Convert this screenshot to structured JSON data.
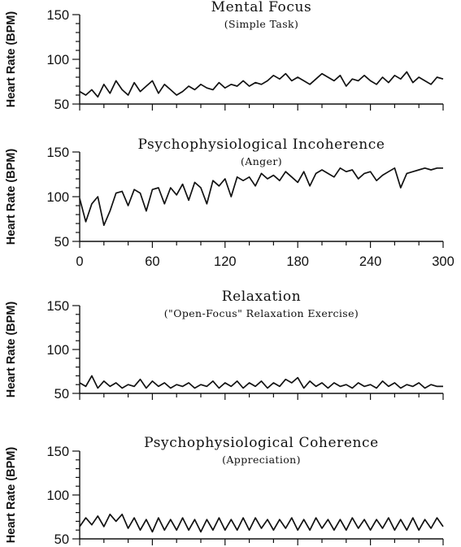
{
  "chart_data": [
    {
      "type": "line",
      "title": "Mental Focus",
      "subtitle": "(Simple Task)",
      "ylabel": "Heart Rate (BPM)",
      "xlabel": "",
      "ylim": [
        50,
        150
      ],
      "yticks": [
        "150",
        "100",
        "50"
      ],
      "xlim": [
        0,
        300
      ],
      "xticks": [],
      "grid": false,
      "series": [
        {
          "x": [
            0,
            5,
            10,
            15,
            20,
            25,
            30,
            35,
            40,
            45,
            50,
            55,
            60,
            65,
            70,
            75,
            80,
            85,
            90,
            95,
            100,
            105,
            110,
            115,
            120,
            125,
            130,
            135,
            140,
            145,
            150,
            155,
            160,
            165,
            170,
            175,
            180,
            185,
            190,
            195,
            200,
            205,
            210,
            215,
            220,
            225,
            230,
            235,
            240,
            245,
            250,
            255,
            260,
            265,
            270,
            275,
            280,
            285,
            290,
            295,
            300
          ],
          "y": [
            64,
            60,
            66,
            58,
            72,
            62,
            76,
            66,
            60,
            74,
            64,
            70,
            76,
            62,
            72,
            66,
            60,
            64,
            70,
            66,
            72,
            68,
            66,
            74,
            68,
            72,
            70,
            76,
            70,
            74,
            72,
            76,
            82,
            78,
            84,
            76,
            80,
            76,
            72,
            78,
            84,
            80,
            76,
            82,
            70,
            78,
            76,
            82,
            76,
            72,
            80,
            74,
            82,
            78,
            86,
            74,
            80,
            76,
            72,
            80,
            78
          ]
        }
      ]
    },
    {
      "type": "line",
      "title": "Psychophysiological Incoherence",
      "subtitle": "(Anger)",
      "ylabel": "Heart Rate (BPM)",
      "xlabel": "",
      "ylim": [
        50,
        150
      ],
      "yticks": [
        "150",
        "100",
        "50"
      ],
      "xlim": [
        0,
        300
      ],
      "xticks": [
        "0",
        "60",
        "120",
        "180",
        "240",
        "300"
      ],
      "grid": false,
      "series": [
        {
          "x": [
            0,
            5,
            10,
            15,
            20,
            25,
            30,
            35,
            40,
            45,
            50,
            55,
            60,
            65,
            70,
            75,
            80,
            85,
            90,
            95,
            100,
            105,
            110,
            115,
            120,
            125,
            130,
            135,
            140,
            145,
            150,
            155,
            160,
            165,
            170,
            175,
            180,
            185,
            190,
            195,
            200,
            205,
            210,
            215,
            220,
            225,
            230,
            235,
            240,
            245,
            250,
            255,
            260,
            265,
            270,
            275,
            280,
            285,
            290,
            295,
            300
          ],
          "y": [
            98,
            72,
            92,
            100,
            68,
            84,
            104,
            106,
            90,
            108,
            104,
            84,
            108,
            110,
            92,
            110,
            102,
            114,
            96,
            116,
            110,
            92,
            118,
            112,
            120,
            100,
            122,
            118,
            122,
            112,
            126,
            120,
            124,
            118,
            128,
            122,
            116,
            128,
            112,
            126,
            130,
            126,
            122,
            132,
            128,
            130,
            120,
            126,
            128,
            118,
            124,
            128,
            132,
            110,
            126,
            128,
            130,
            132,
            130,
            132,
            132
          ]
        }
      ]
    },
    {
      "type": "line",
      "title": "Relaxation",
      "subtitle": "(\"Open-Focus\" Relaxation Exercise)",
      "ylabel": "Heart Rate (BPM)",
      "xlabel": "",
      "ylim": [
        50,
        150
      ],
      "yticks": [
        "150",
        "100",
        "50"
      ],
      "xlim": [
        0,
        300
      ],
      "xticks": [],
      "grid": false,
      "series": [
        {
          "x": [
            0,
            5,
            10,
            15,
            20,
            25,
            30,
            35,
            40,
            45,
            50,
            55,
            60,
            65,
            70,
            75,
            80,
            85,
            90,
            95,
            100,
            105,
            110,
            115,
            120,
            125,
            130,
            135,
            140,
            145,
            150,
            155,
            160,
            165,
            170,
            175,
            180,
            185,
            190,
            195,
            200,
            205,
            210,
            215,
            220,
            225,
            230,
            235,
            240,
            245,
            250,
            255,
            260,
            265,
            270,
            275,
            280,
            285,
            290,
            295,
            300
          ],
          "y": [
            62,
            58,
            70,
            56,
            64,
            58,
            62,
            56,
            60,
            58,
            66,
            56,
            64,
            58,
            62,
            56,
            60,
            58,
            62,
            56,
            60,
            58,
            64,
            56,
            62,
            58,
            64,
            56,
            62,
            58,
            64,
            56,
            62,
            58,
            66,
            62,
            68,
            56,
            64,
            58,
            62,
            56,
            62,
            58,
            60,
            56,
            62,
            58,
            60,
            56,
            64,
            58,
            62,
            56,
            60,
            58,
            62,
            56,
            60,
            58,
            58
          ]
        }
      ]
    },
    {
      "type": "line",
      "title": "Psychophysiological Coherence",
      "subtitle": "(Appreciation)",
      "ylabel": "Heart Rate (BPM)",
      "xlabel": "",
      "ylim": [
        50,
        150
      ],
      "yticks": [
        "150",
        "100",
        "50"
      ],
      "xlim": [
        0,
        300
      ],
      "xticks": [],
      "grid": false,
      "series": [
        {
          "x": [
            0,
            5,
            10,
            15,
            20,
            25,
            30,
            35,
            40,
            45,
            50,
            55,
            60,
            65,
            70,
            75,
            80,
            85,
            90,
            95,
            100,
            105,
            110,
            115,
            120,
            125,
            130,
            135,
            140,
            145,
            150,
            155,
            160,
            165,
            170,
            175,
            180,
            185,
            190,
            195,
            200,
            205,
            210,
            215,
            220,
            225,
            230,
            235,
            240,
            245,
            250,
            255,
            260,
            265,
            270,
            275,
            280,
            285,
            290,
            295,
            300
          ],
          "y": [
            64,
            74,
            66,
            76,
            64,
            78,
            70,
            78,
            62,
            74,
            60,
            72,
            58,
            74,
            60,
            72,
            60,
            74,
            60,
            72,
            58,
            72,
            60,
            74,
            60,
            72,
            60,
            74,
            60,
            74,
            62,
            72,
            60,
            72,
            62,
            74,
            60,
            72,
            60,
            74,
            62,
            72,
            60,
            72,
            60,
            74,
            62,
            72,
            60,
            72,
            62,
            74,
            60,
            72,
            60,
            74,
            60,
            72,
            62,
            74,
            64
          ]
        }
      ]
    }
  ]
}
